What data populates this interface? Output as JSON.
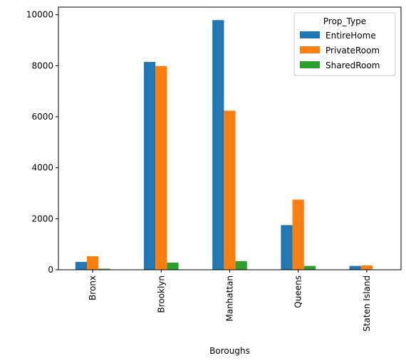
{
  "chart_data": {
    "type": "bar",
    "categories": [
      "Bronx",
      "Brooklyn",
      "Manhattan",
      "Queens",
      "Staten Island"
    ],
    "series": [
      {
        "name": "EntireHome",
        "color": "#1f77b4",
        "values": [
          310,
          8150,
          9790,
          1750,
          150
        ]
      },
      {
        "name": "PrivateRoom",
        "color": "#ff7f0e",
        "values": [
          530,
          7990,
          6240,
          2750,
          170
        ]
      },
      {
        "name": "SharedRoom",
        "color": "#2ca02c",
        "values": [
          40,
          280,
          340,
          150,
          10
        ]
      }
    ],
    "xlabel": "Boroughs",
    "ylabel": "",
    "ylim": [
      0,
      10300
    ],
    "yticks": [
      0,
      2000,
      4000,
      6000,
      8000,
      10000
    ],
    "grid": false,
    "legend": {
      "title": "Prop_Type",
      "placement": "top-right"
    }
  }
}
